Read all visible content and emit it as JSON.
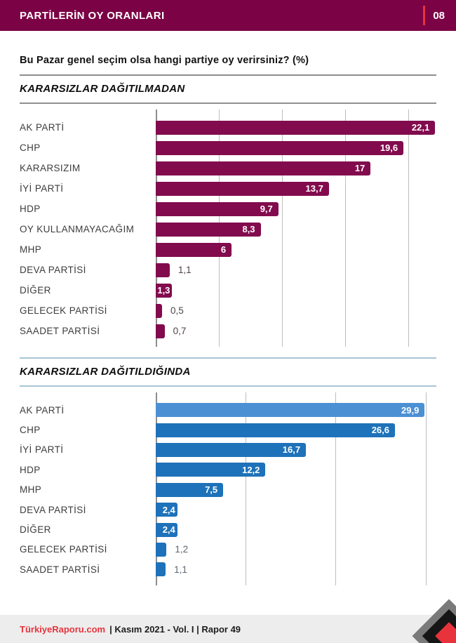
{
  "page": {
    "header": {
      "title": "PARTİLERİN OY ORANLARI",
      "page_number": "08"
    },
    "question": "Bu Pazar genel seçim olsa hangi partiye oy verirsiniz? (%)",
    "footer": {
      "brand": "TürkiyeRaporu.com",
      "meta": "| Kasım 2021 - Vol. I | Rapor 49"
    },
    "colors": {
      "header_maroon": "#7b0345",
      "bar_maroon": "#820b4d",
      "bar_blue": "#1e72b9",
      "bar_blue_highlight": "#4c90d4",
      "accent_red": "#e8333d",
      "footer_brand_red": "#e8333d"
    }
  },
  "chart_data": [
    {
      "type": "bar",
      "orientation": "horizontal",
      "title": "KARARSIZLAR DAĞITILMADAN",
      "categories": [
        "AK PARTİ",
        "CHP",
        "KARARSIZIM",
        "İYİ PARTİ",
        "HDP",
        "OY KULLANMAYACAĞIM",
        "MHP",
        "DEVA PARTİSİ",
        "DİĞER",
        "GELECEK PARTİSİ",
        "SAADET PARTİSİ"
      ],
      "values": [
        22.1,
        19.6,
        17,
        13.7,
        9.7,
        8.3,
        6,
        1.1,
        1.3,
        0.5,
        0.7
      ],
      "value_labels": [
        "22,1",
        "19,6",
        "17",
        "13,7",
        "9,7",
        "8,3",
        "6",
        "1,1",
        "1,3",
        "0,5",
        "0,7"
      ],
      "xlabel": "",
      "ylabel": "",
      "xlim": [
        0,
        22.2
      ],
      "gridline_step": 5,
      "grid": true,
      "legend": false,
      "bar_color": "#820b4d"
    },
    {
      "type": "bar",
      "orientation": "horizontal",
      "title": "KARARSIZLAR DAĞITILDIĞINDA",
      "categories": [
        "AK PARTİ",
        "CHP",
        "İYİ PARTİ",
        "HDP",
        "MHP",
        "DEVA PARTİSİ",
        "DİĞER",
        "GELECEK PARTİSİ",
        "SAADET PARTİSİ"
      ],
      "values": [
        29.9,
        26.6,
        16.7,
        12.2,
        7.5,
        2.4,
        2.4,
        1.2,
        1.1
      ],
      "value_labels": [
        "29,9",
        "26,6",
        "16,7",
        "12,2",
        "7,5",
        "2,4",
        "2,4",
        "1,2",
        "1,1"
      ],
      "xlabel": "",
      "ylabel": "",
      "xlim": [
        0,
        31.2
      ],
      "gridline_step": 10,
      "grid": true,
      "legend": false,
      "bar_color": "#1e72b9",
      "bar_colors": [
        "#4c90d4",
        null,
        null,
        null,
        null,
        null,
        null,
        null,
        null
      ]
    }
  ]
}
